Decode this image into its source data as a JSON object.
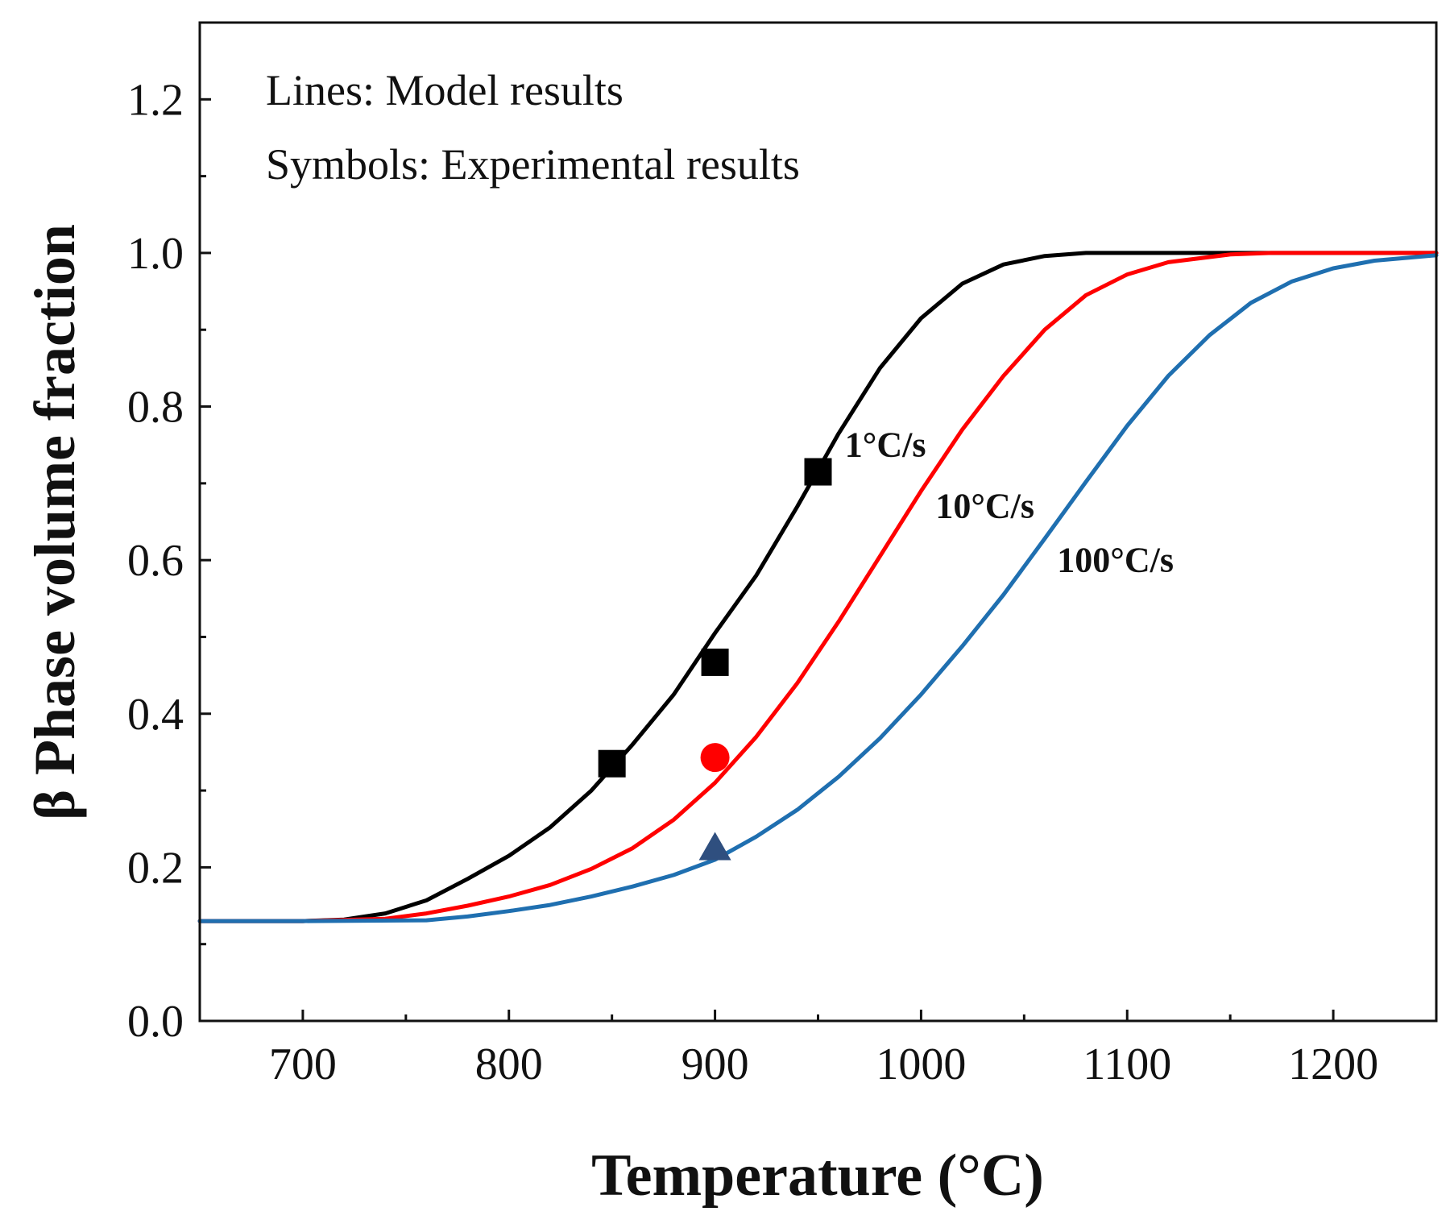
{
  "chart_data": {
    "type": "line",
    "xlabel": "Temperature (°C)",
    "ylabel": "β Phase volume fraction",
    "xlim": [
      650,
      1250
    ],
    "ylim": [
      0,
      1.3
    ],
    "x_ticks": [
      700,
      800,
      900,
      1000,
      1100,
      1200
    ],
    "x_tick_labels": [
      "700",
      "800",
      "900",
      "1000",
      "1100",
      "1200"
    ],
    "y_ticks": [
      0.0,
      0.2,
      0.4,
      0.6,
      0.8,
      1.0,
      1.2
    ],
    "y_tick_labels": [
      "0.0",
      "0.2",
      "0.4",
      "0.6",
      "0.8",
      "1.0",
      "1.2"
    ],
    "grid": false,
    "annotations": [
      "Lines: Model results",
      "Symbols: Experimental results"
    ],
    "series": [
      {
        "name": "1°C/s",
        "kind": "line",
        "color": "#000000",
        "points": [
          [
            650,
            0.13
          ],
          [
            700,
            0.13
          ],
          [
            720,
            0.132
          ],
          [
            740,
            0.14
          ],
          [
            760,
            0.157
          ],
          [
            780,
            0.185
          ],
          [
            800,
            0.215
          ],
          [
            820,
            0.252
          ],
          [
            840,
            0.3
          ],
          [
            860,
            0.36
          ],
          [
            880,
            0.425
          ],
          [
            900,
            0.505
          ],
          [
            920,
            0.58
          ],
          [
            940,
            0.67
          ],
          [
            960,
            0.765
          ],
          [
            980,
            0.85
          ],
          [
            1000,
            0.915
          ],
          [
            1020,
            0.96
          ],
          [
            1040,
            0.985
          ],
          [
            1060,
            0.996
          ],
          [
            1080,
            1.0
          ],
          [
            1250,
            1.0
          ]
        ]
      },
      {
        "name": "10°C/s",
        "kind": "line",
        "color": "#ff0000",
        "points": [
          [
            650,
            0.13
          ],
          [
            700,
            0.13
          ],
          [
            740,
            0.133
          ],
          [
            760,
            0.14
          ],
          [
            780,
            0.15
          ],
          [
            800,
            0.162
          ],
          [
            820,
            0.177
          ],
          [
            840,
            0.198
          ],
          [
            860,
            0.225
          ],
          [
            880,
            0.262
          ],
          [
            900,
            0.31
          ],
          [
            920,
            0.37
          ],
          [
            940,
            0.44
          ],
          [
            960,
            0.52
          ],
          [
            980,
            0.605
          ],
          [
            1000,
            0.69
          ],
          [
            1020,
            0.77
          ],
          [
            1040,
            0.84
          ],
          [
            1060,
            0.9
          ],
          [
            1080,
            0.945
          ],
          [
            1100,
            0.972
          ],
          [
            1120,
            0.988
          ],
          [
            1150,
            0.998
          ],
          [
            1170,
            1.0
          ],
          [
            1250,
            1.0
          ]
        ]
      },
      {
        "name": "100°C/s",
        "kind": "line",
        "color": "#1f6fb0",
        "points": [
          [
            650,
            0.13
          ],
          [
            700,
            0.13
          ],
          [
            760,
            0.131
          ],
          [
            780,
            0.136
          ],
          [
            800,
            0.143
          ],
          [
            820,
            0.151
          ],
          [
            840,
            0.162
          ],
          [
            860,
            0.175
          ],
          [
            880,
            0.19
          ],
          [
            900,
            0.21
          ],
          [
            920,
            0.24
          ],
          [
            940,
            0.275
          ],
          [
            960,
            0.318
          ],
          [
            980,
            0.368
          ],
          [
            1000,
            0.425
          ],
          [
            1020,
            0.488
          ],
          [
            1040,
            0.555
          ],
          [
            1060,
            0.628
          ],
          [
            1080,
            0.702
          ],
          [
            1100,
            0.775
          ],
          [
            1120,
            0.84
          ],
          [
            1140,
            0.893
          ],
          [
            1160,
            0.935
          ],
          [
            1180,
            0.963
          ],
          [
            1200,
            0.98
          ],
          [
            1220,
            0.99
          ],
          [
            1250,
            0.997
          ]
        ]
      },
      {
        "name": "",
        "kind": "marker",
        "marker": "square",
        "color": "#000000",
        "points": [
          [
            850,
            0.335
          ],
          [
            900,
            0.467
          ],
          [
            950,
            0.715
          ]
        ]
      },
      {
        "name": "",
        "kind": "marker",
        "marker": "circle",
        "color": "#ff0000",
        "points": [
          [
            900,
            0.343
          ]
        ]
      },
      {
        "name": "",
        "kind": "marker",
        "marker": "triangle",
        "color": "#2f4f7f",
        "points": [
          [
            900,
            0.225
          ]
        ]
      }
    ],
    "curve_labels": [
      {
        "text": "1°C/s",
        "x": 963,
        "y": 0.735
      },
      {
        "text": "10°C/s",
        "x": 1007,
        "y": 0.655
      },
      {
        "text": "100°C/s",
        "x": 1066,
        "y": 0.585
      }
    ]
  }
}
